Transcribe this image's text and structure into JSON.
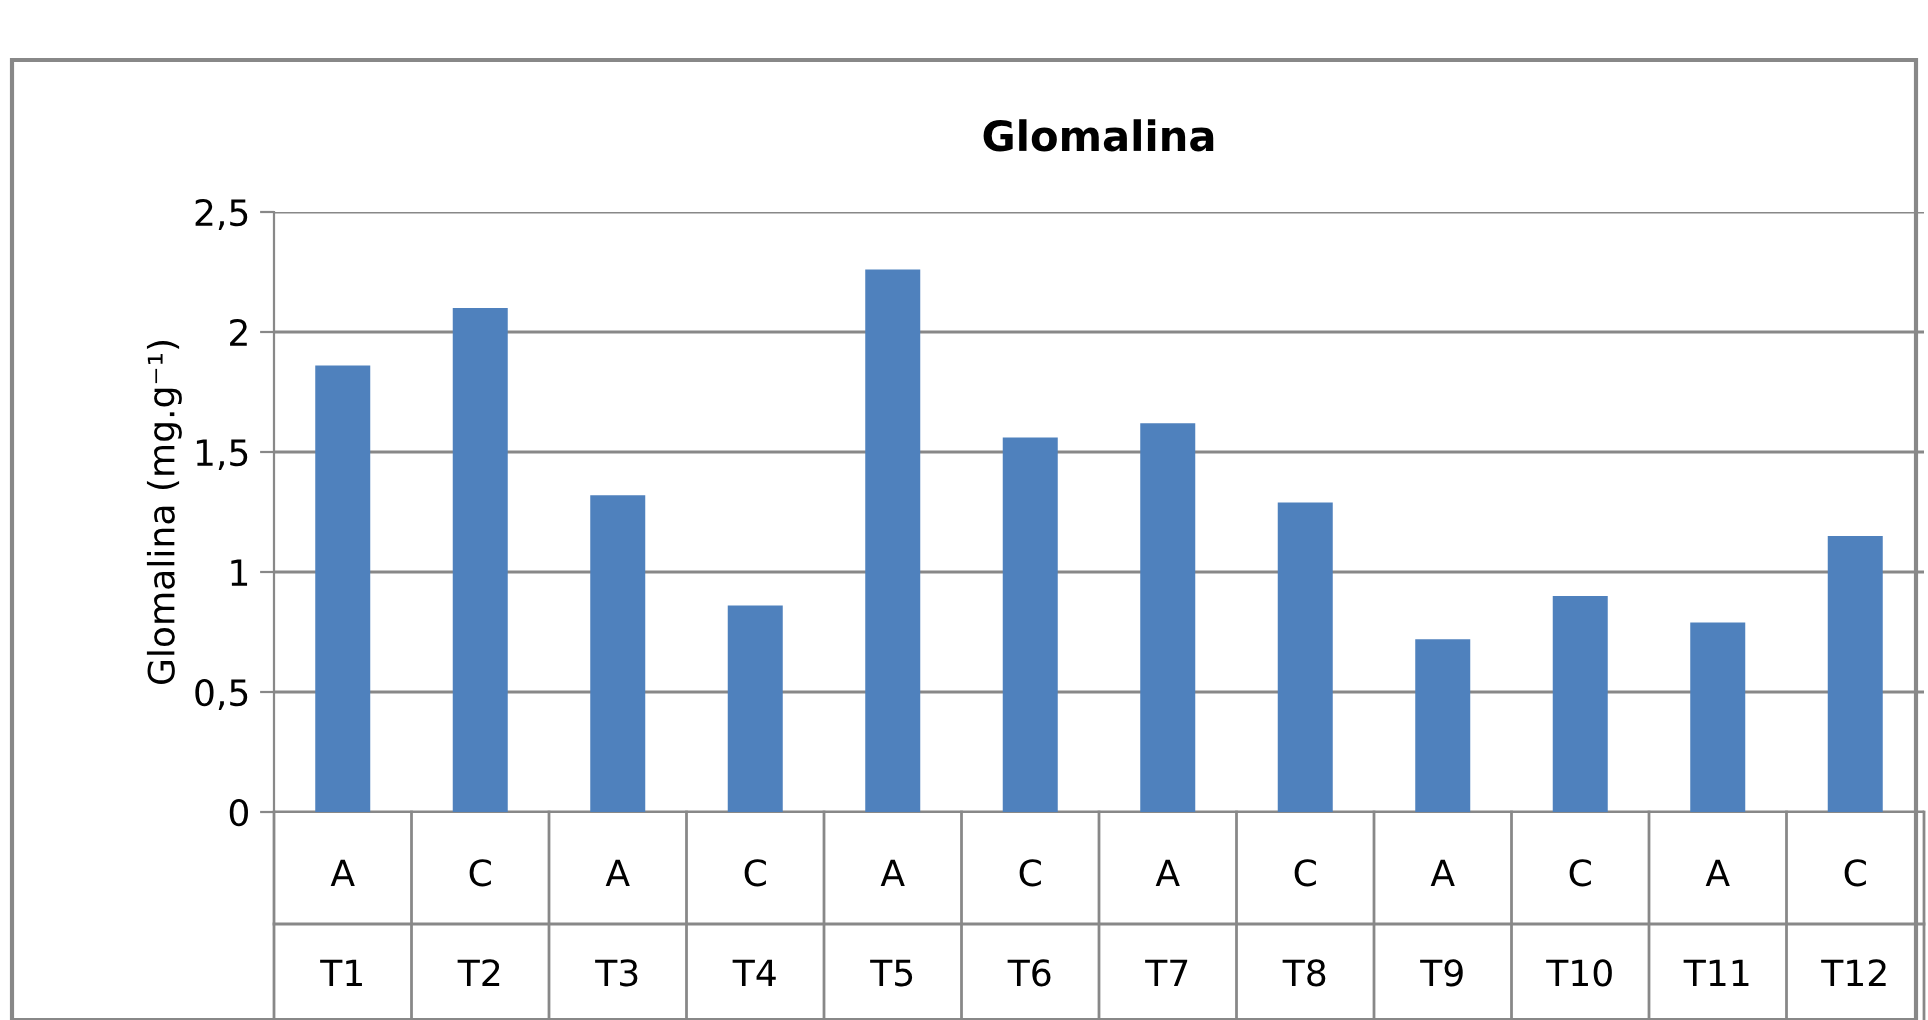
{
  "chart_data": {
    "type": "bar",
    "title": "Glomalina",
    "ylabel": "Glomalina (mg.g⁻¹)",
    "categories": [
      "A\nT1",
      "C\nT2",
      "A\nT3",
      "C\nT4",
      "A\nT5",
      "C\nT6",
      "A\nT7",
      "C\nT8",
      "A\nT9",
      "C\nT10",
      "A\nT11",
      "C\nT12"
    ],
    "values": [
      1.86,
      2.1,
      1.32,
      0.86,
      2.26,
      1.56,
      1.62,
      1.29,
      0.72,
      0.9,
      0.79,
      1.15
    ],
    "color": "#4f81bd",
    "ylim": [
      0,
      2.5
    ],
    "yticks": [
      0,
      {
        "value": 0.5,
        "label": "0,5"
      },
      1,
      {
        "value": 1.5,
        "label": "1,5"
      },
      2,
      {
        "value": 2.5,
        "label": "2,5"
      }
    ],
    "grid": "y"
  }
}
